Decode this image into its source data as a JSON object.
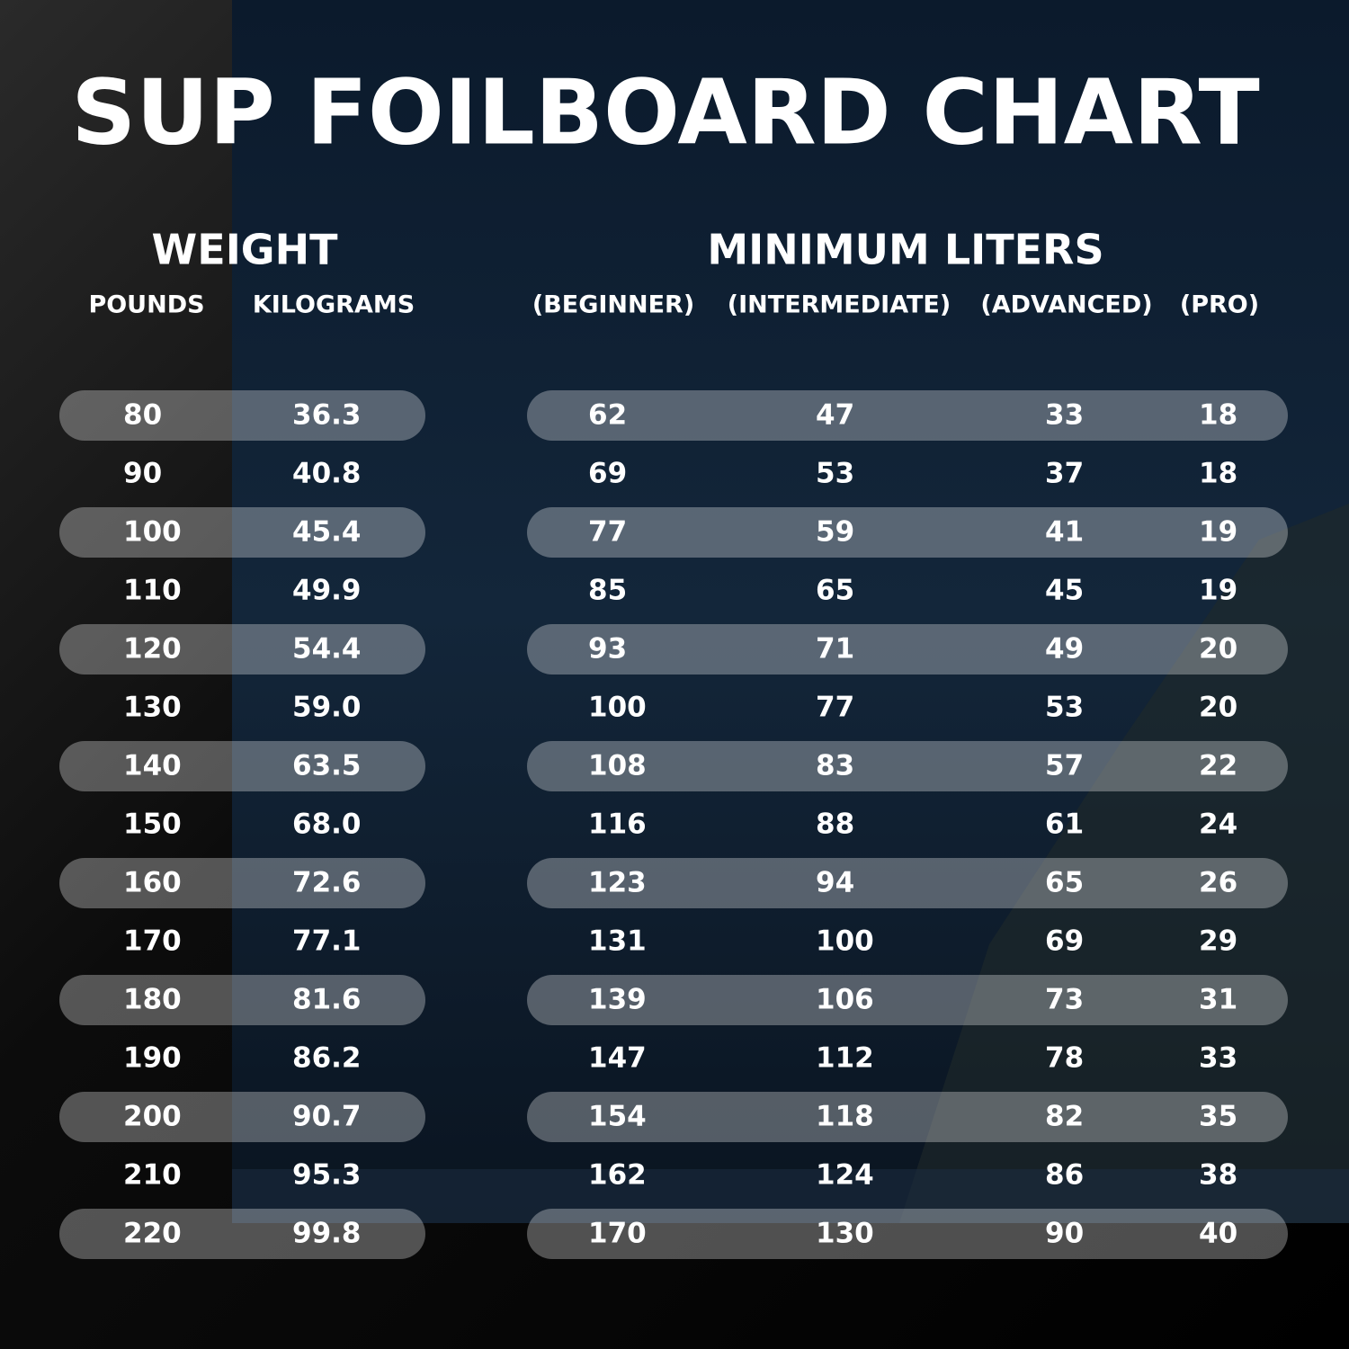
{
  "title": "SUP FOILBOARD CHART",
  "groups": [
    "WEIGHT",
    "MINIMUM LITERS"
  ],
  "columns": [
    "POUNDS",
    "KILOGRAMS",
    "(BEGINNER)",
    "(INTERMEDIATE)",
    "(ADVANCED)",
    "(PRO)"
  ],
  "rows": [
    [
      "80",
      "36.3",
      "62",
      "47",
      "33",
      "18"
    ],
    [
      "90",
      "40.8",
      "69",
      "53",
      "37",
      "18"
    ],
    [
      "100",
      "45.4",
      "77",
      "59",
      "41",
      "19"
    ],
    [
      "110",
      "49.9",
      "85",
      "65",
      "45",
      "19"
    ],
    [
      "120",
      "54.4",
      "93",
      "71",
      "49",
      "20"
    ],
    [
      "130",
      "59.0",
      "100",
      "77",
      "53",
      "20"
    ],
    [
      "140",
      "63.5",
      "108",
      "83",
      "57",
      "22"
    ],
    [
      "150",
      "68.0",
      "116",
      "88",
      "61",
      "24"
    ],
    [
      "160",
      "72.6",
      "123",
      "94",
      "65",
      "26"
    ],
    [
      "170",
      "77.1",
      "131",
      "100",
      "69",
      "29"
    ],
    [
      "180",
      "81.6",
      "139",
      "106",
      "73",
      "31"
    ],
    [
      "190",
      "86.2",
      "147",
      "112",
      "78",
      "33"
    ],
    [
      "200",
      "90.7",
      "154",
      "118",
      "82",
      "35"
    ],
    [
      "210",
      "95.3",
      "162",
      "124",
      "86",
      "38"
    ],
    [
      "220",
      "99.8",
      "170",
      "130",
      "90",
      "40"
    ]
  ]
}
